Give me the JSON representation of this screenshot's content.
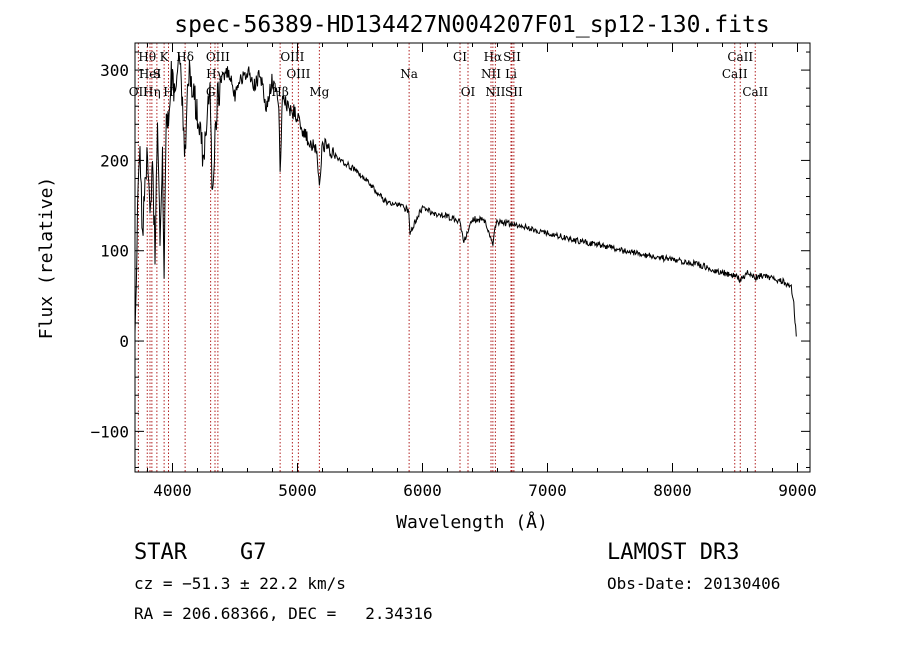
{
  "chart_data": {
    "type": "line",
    "title": "spec-56389-HD134427N004207F01_sp12-130.fits",
    "xlabel": "Wavelength (Å)",
    "ylabel": "Flux (relative)",
    "xlim": [
      3700,
      9100
    ],
    "ylim": [
      -145,
      330
    ],
    "xticks": [
      4000,
      5000,
      6000,
      7000,
      8000,
      9000
    ],
    "xtick_labels": [
      "4000",
      "5000",
      "6000",
      "7000",
      "8000",
      "9000"
    ],
    "yticks": [
      -100,
      0,
      100,
      200,
      300
    ],
    "ytick_labels": [
      "−100",
      "0",
      "100",
      "200",
      "300"
    ],
    "line_color": "#000000",
    "marker_color": "#b22222",
    "spectrum": {
      "x": [
        3700,
        3720,
        3740,
        3760,
        3780,
        3800,
        3820,
        3840,
        3860,
        3880,
        3900,
        3920,
        3933,
        3950,
        3968,
        3990,
        4010,
        4040,
        4070,
        4101,
        4130,
        4160,
        4200,
        4250,
        4300,
        4320,
        4340,
        4360,
        4400,
        4450,
        4500,
        4550,
        4600,
        4650,
        4700,
        4750,
        4800,
        4850,
        4861,
        4880,
        4920,
        4960,
        5000,
        5050,
        5100,
        5150,
        5175,
        5200,
        5300,
        5400,
        5500,
        5600,
        5700,
        5800,
        5890,
        5900,
        6000,
        6100,
        6200,
        6300,
        6330,
        6400,
        6500,
        6563,
        6580,
        6600,
        6700,
        6800,
        7000,
        7200,
        7400,
        7600,
        7800,
        8000,
        8200,
        8400,
        8498,
        8542,
        8600,
        8662,
        8700,
        8800,
        8900,
        8950,
        8970,
        8990
      ],
      "y": [
        0,
        150,
        200,
        120,
        170,
        220,
        140,
        190,
        100,
        230,
        120,
        200,
        60,
        260,
        230,
        300,
        280,
        310,
        290,
        200,
        300,
        280,
        250,
        200,
        290,
        150,
        220,
        270,
        290,
        300,
        270,
        290,
        300,
        280,
        295,
        260,
        290,
        265,
        180,
        270,
        260,
        255,
        250,
        230,
        220,
        210,
        170,
        220,
        205,
        195,
        185,
        170,
        155,
        150,
        145,
        120,
        148,
        140,
        138,
        132,
        110,
        135,
        134,
        105,
        128,
        132,
        130,
        127,
        120,
        112,
        107,
        100,
        95,
        90,
        85,
        76,
        72,
        68,
        76,
        70,
        72,
        70,
        65,
        60,
        40,
        5
      ]
    },
    "lines": [
      {
        "label": "Hθ",
        "wl": 3798,
        "row": 1
      },
      {
        "label": "K",
        "wl": 3933,
        "row": 1
      },
      {
        "label": "Hδ",
        "wl": 4101,
        "row": 1
      },
      {
        "label": "OIII",
        "wl": 4363,
        "row": 1
      },
      {
        "label": "OIII",
        "wl": 4959,
        "row": 1
      },
      {
        "label": "CI",
        "wl": 6300,
        "row": 1
      },
      {
        "label": "Hα",
        "wl": 6563,
        "row": 1
      },
      {
        "label": "SII",
        "wl": 6716,
        "row": 1
      },
      {
        "label": "CaII",
        "wl": 8542,
        "row": 1
      },
      {
        "label": "HeI",
        "wl": 3820,
        "row": 2
      },
      {
        "label": "S",
        "wl": 3875,
        "row": 2
      },
      {
        "label": "Hγ",
        "wl": 4340,
        "row": 2
      },
      {
        "label": "OIII",
        "wl": 5007,
        "row": 2
      },
      {
        "label": "Na",
        "wl": 5893,
        "row": 2
      },
      {
        "label": "NII",
        "wl": 6548,
        "row": 2
      },
      {
        "label": "Li",
        "wl": 6708,
        "row": 2
      },
      {
        "label": "CaII",
        "wl": 8498,
        "row": 2
      },
      {
        "label": "OII",
        "wl": 3727,
        "row": 3
      },
      {
        "label": "Hη",
        "wl": 3835,
        "row": 3
      },
      {
        "label": "H",
        "wl": 3968,
        "row": 3
      },
      {
        "label": "G",
        "wl": 4305,
        "row": 3
      },
      {
        "label": "Hβ",
        "wl": 4861,
        "row": 3
      },
      {
        "label": "Mg",
        "wl": 5175,
        "row": 3
      },
      {
        "label": "OI",
        "wl": 6364,
        "row": 3
      },
      {
        "label": "NII",
        "wl": 6583,
        "row": 3
      },
      {
        "label": "SII",
        "wl": 6731,
        "row": 3
      },
      {
        "label": "CaII",
        "wl": 8662,
        "row": 3
      }
    ]
  },
  "info": {
    "object_class": "STAR",
    "subclass": "G7",
    "survey": "LAMOST DR3",
    "cz": "cz = −51.3 ± 22.2 km/s",
    "obs_date": "Obs-Date: 20130406",
    "coords": "RA = 206.68366, DEC =   2.34316"
  }
}
